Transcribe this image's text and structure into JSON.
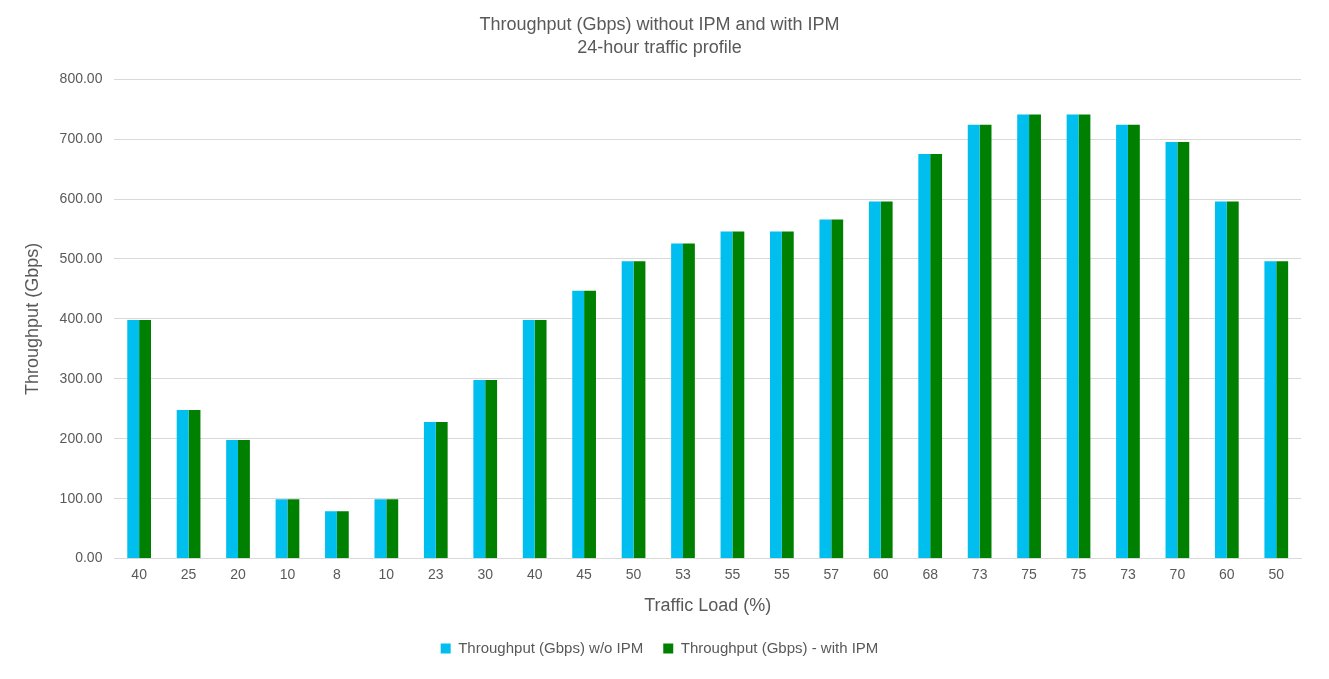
{
  "chart_data": {
    "type": "bar",
    "title": "Throughput (Gbps) without IPM and with IPM",
    "subtitle": "24-hour traffic profile",
    "xlabel": "Traffic Load (%)",
    "ylabel": "Throughput (Gbps)",
    "categories": [
      "40",
      "25",
      "20",
      "10",
      "8",
      "10",
      "23",
      "30",
      "40",
      "45",
      "50",
      "53",
      "55",
      "55",
      "57",
      "60",
      "68",
      "73",
      "75",
      "75",
      "73",
      "70",
      "60",
      "50"
    ],
    "series": [
      {
        "name": "Throughput (Gbps) w/o IPM",
        "color": "#00bfef",
        "values": [
          398,
          248,
          198,
          99,
          79,
          99,
          228,
          298,
          398,
          447,
          496,
          526,
          546,
          546,
          566,
          596,
          675,
          724,
          741,
          741,
          724,
          695,
          596,
          496
        ]
      },
      {
        "name": "Throughput (Gbps) - with IPM",
        "color": "#008000",
        "values": [
          398,
          248,
          198,
          99,
          79,
          99,
          228,
          298,
          398,
          447,
          496,
          526,
          546,
          546,
          566,
          596,
          675,
          724,
          741,
          741,
          724,
          695,
          596,
          496
        ]
      }
    ],
    "ylim": [
      0,
      800
    ],
    "yticks": [
      {
        "value": 0,
        "label": "0.00"
      },
      {
        "value": 100,
        "label": "100.00"
      },
      {
        "value": 200,
        "label": "200.00"
      },
      {
        "value": 300,
        "label": "300.00"
      },
      {
        "value": 400,
        "label": "400.00"
      },
      {
        "value": 500,
        "label": "500.00"
      },
      {
        "value": 600,
        "label": "600.00"
      },
      {
        "value": 700,
        "label": "700.00"
      },
      {
        "value": 800,
        "label": "800.00"
      }
    ],
    "grid": "y",
    "legend": "bottom"
  }
}
